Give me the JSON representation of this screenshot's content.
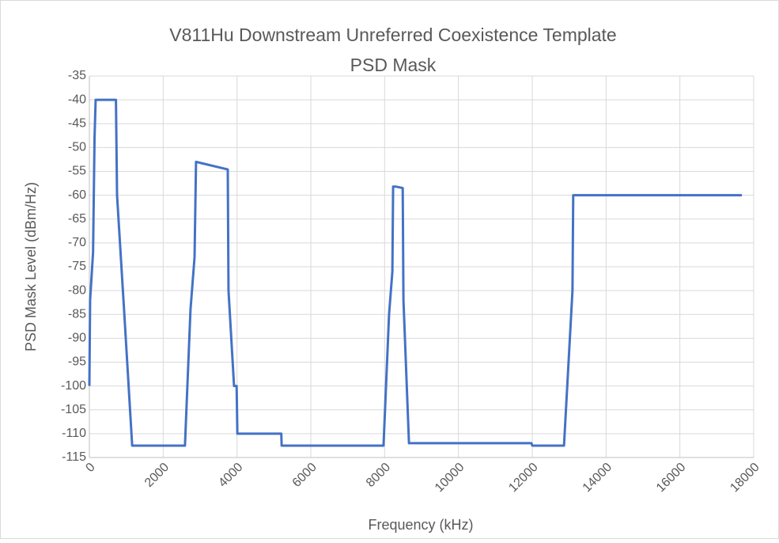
{
  "chart_data": {
    "type": "line",
    "title": [
      "V811Hu Downstream Unreferred Coexistence Template",
      "PSD Mask"
    ],
    "xlabel": "Frequency (kHz)",
    "ylabel": "PSD Mask Level (dBm/Hz)",
    "xlim": [
      0,
      18000
    ],
    "ylim": [
      -115,
      -35
    ],
    "xticks": [
      0,
      2000,
      4000,
      6000,
      8000,
      10000,
      12000,
      14000,
      16000,
      18000
    ],
    "yticks": [
      -35,
      -40,
      -45,
      -50,
      -55,
      -60,
      -65,
      -70,
      -75,
      -80,
      -85,
      -90,
      -95,
      -100,
      -105,
      -110,
      -115
    ],
    "grid": true,
    "series": [
      {
        "name": "PSD Mask",
        "color": "#4472c4",
        "x": [
          0,
          20,
          100,
          140,
          170,
          720,
          750,
          940,
          1160,
          2590,
          2740,
          2850,
          2890,
          3750,
          3770,
          3920,
          3990,
          4010,
          5200,
          5210,
          7970,
          8120,
          8210,
          8230,
          8310,
          8490,
          8510,
          8660,
          11980,
          12000,
          12860,
          13090,
          13110,
          17680
        ],
        "values": [
          -100,
          -82,
          -72,
          -48,
          -40,
          -40,
          -60,
          -84,
          -112.5,
          -112.5,
          -84,
          -73,
          -53,
          -54.6,
          -80,
          -100,
          -100,
          -110,
          -110,
          -112.5,
          -112.5,
          -85,
          -76,
          -58.2,
          -58.2,
          -58.5,
          -82,
          -112,
          -112,
          -112.5,
          -112.5,
          -80,
          -60,
          -60
        ]
      }
    ]
  }
}
